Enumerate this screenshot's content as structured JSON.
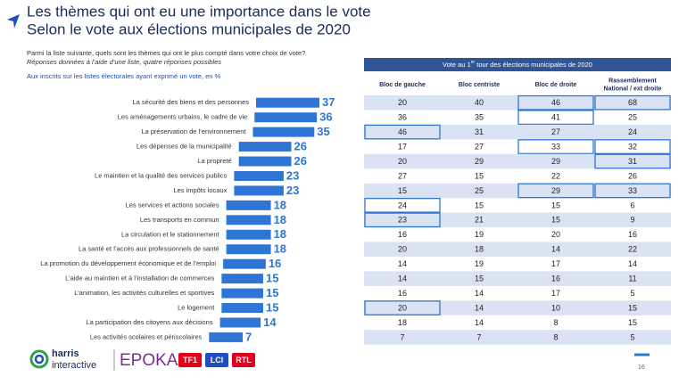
{
  "header": {
    "title_lines": [
      "Les thèmes qui ont eu une importance dans le vote",
      "Selon le vote aux élections municipales de 2020"
    ],
    "question": "Parmi la liste suivante, quels sont les thèmes qui ont le plus compté dans votre choix de vote?",
    "note": "Réponses données à l’aide d’une liste, quatre réponses possibles",
    "base": "Aux inscrits sur les listes électorales ayant exprimé un vote, en %"
  },
  "chart_data": {
    "type": "bar",
    "orientation": "horizontal",
    "color": "#2e75d6",
    "categories": [
      "La sécurité des biens et des personnes",
      "Les aménagements urbains, le cadre de vie",
      "La préservation de l’environnement",
      "Les dépenses de la municipalité",
      "La propreté",
      "Le maintien et la qualité des services publics",
      "Les impôts locaux",
      "Les services et actions sociales",
      "Les transports en commun",
      "La circulation et le stationnement",
      "La santé et l’accès aux professionnels de santé",
      "La promotion du développement économique et de l’emploi",
      "L’aide au maintien et à l’installation de commerces",
      "L’animation, les activités culturelles et sportives",
      "Le logement",
      "La participation des citoyens aux décisions",
      "Les activités scolaires et périscolaires"
    ],
    "values": [
      37,
      36,
      35,
      26,
      26,
      23,
      23,
      18,
      18,
      18,
      18,
      16,
      15,
      15,
      15,
      14,
      7
    ]
  },
  "table": {
    "title_parts": [
      "Vote au 1",
      "er",
      " tour des élections municipales de 2020"
    ],
    "columns": [
      [
        "Bloc de gauche"
      ],
      [
        "Bloc centriste"
      ],
      [
        "Bloc de droite"
      ],
      [
        "Rassemblement",
        "National / ext droite"
      ]
    ],
    "rows": [
      {
        "values": [
          20,
          40,
          46,
          68
        ],
        "highlight": [
          false,
          false,
          true,
          true
        ]
      },
      {
        "values": [
          36,
          35,
          41,
          25
        ],
        "highlight": [
          false,
          false,
          true,
          false
        ]
      },
      {
        "values": [
          46,
          31,
          27,
          24
        ],
        "highlight": [
          true,
          false,
          false,
          false
        ]
      },
      {
        "values": [
          17,
          27,
          33,
          32
        ],
        "highlight": [
          false,
          false,
          true,
          true
        ]
      },
      {
        "values": [
          20,
          29,
          29,
          31
        ],
        "highlight": [
          false,
          false,
          false,
          true
        ]
      },
      {
        "values": [
          27,
          15,
          22,
          26
        ],
        "highlight": [
          false,
          false,
          false,
          false
        ]
      },
      {
        "values": [
          15,
          25,
          29,
          33
        ],
        "highlight": [
          false,
          false,
          true,
          true
        ]
      },
      {
        "values": [
          24,
          15,
          15,
          6
        ],
        "highlight": [
          true,
          false,
          false,
          false
        ]
      },
      {
        "values": [
          23,
          21,
          15,
          9
        ],
        "highlight": [
          true,
          false,
          false,
          false
        ]
      },
      {
        "values": [
          16,
          19,
          20,
          16
        ],
        "highlight": [
          false,
          false,
          false,
          false
        ]
      },
      {
        "values": [
          20,
          18,
          14,
          22
        ],
        "highlight": [
          false,
          false,
          false,
          false
        ]
      },
      {
        "values": [
          14,
          19,
          17,
          14
        ],
        "highlight": [
          false,
          false,
          false,
          false
        ]
      },
      {
        "values": [
          14,
          15,
          16,
          11
        ],
        "highlight": [
          false,
          false,
          false,
          false
        ]
      },
      {
        "values": [
          16,
          14,
          17,
          5
        ],
        "highlight": [
          false,
          false,
          false,
          false
        ]
      },
      {
        "values": [
          20,
          14,
          10,
          15
        ],
        "highlight": [
          true,
          false,
          false,
          false
        ]
      },
      {
        "values": [
          18,
          14,
          8,
          15
        ],
        "highlight": [
          false,
          false,
          false,
          false
        ]
      },
      {
        "values": [
          7,
          7,
          8,
          5
        ],
        "highlight": [
          false,
          false,
          false,
          false
        ]
      }
    ]
  },
  "footer": {
    "logo_top": "harris",
    "logo_bottom": "interactive",
    "partner": "EPOKA",
    "channels": [
      "TF1",
      "LCI",
      "RTL"
    ],
    "page": "16"
  }
}
